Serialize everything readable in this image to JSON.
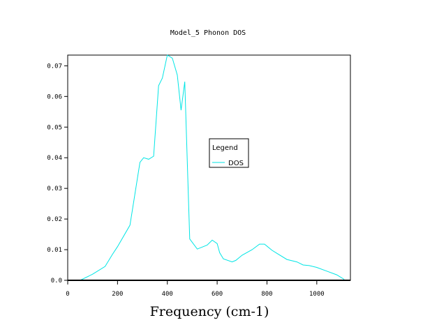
{
  "chart_data": {
    "type": "line",
    "title": "Model_5 Phonon DOS",
    "xlabel": "Frequency (cm-1)",
    "ylabel": "",
    "xlim": [
      0,
      1135
    ],
    "ylim": [
      0,
      0.0735
    ],
    "x_ticks": [
      0,
      200,
      400,
      600,
      800,
      1000
    ],
    "x_tick_labels": [
      "0",
      "200",
      "400",
      "600",
      "800",
      "1000"
    ],
    "y_ticks": [
      0,
      0.01,
      0.02,
      0.03,
      0.04,
      0.05,
      0.06,
      0.07
    ],
    "y_tick_labels": [
      "0.0",
      "0.01",
      "0.02",
      "0.03",
      "0.04",
      "0.05",
      "0.06",
      "0.07"
    ],
    "grid": false,
    "legend": {
      "title": "Legend",
      "placement": "center",
      "entries": [
        "DOS"
      ]
    },
    "series": [
      {
        "name": "DOS",
        "color": "#00e5e5",
        "x": [
          50,
          100,
          150,
          180,
          200,
          250,
          290,
          305,
          325,
          345,
          365,
          380,
          400,
          420,
          440,
          455,
          470,
          490,
          520,
          560,
          580,
          600,
          610,
          625,
          660,
          675,
          700,
          740,
          770,
          790,
          820,
          840,
          880,
          920,
          945,
          970,
          1000,
          1040,
          1080,
          1110
        ],
        "y": [
          0.0,
          0.002,
          0.0045,
          0.0085,
          0.011,
          0.018,
          0.0385,
          0.04,
          0.0395,
          0.0405,
          0.0635,
          0.066,
          0.0735,
          0.0725,
          0.067,
          0.0555,
          0.0648,
          0.0135,
          0.0102,
          0.0115,
          0.0131,
          0.012,
          0.009,
          0.007,
          0.006,
          0.0065,
          0.0082,
          0.01,
          0.0118,
          0.0118,
          0.0098,
          0.0088,
          0.0068,
          0.006,
          0.005,
          0.0048,
          0.0042,
          0.003,
          0.0018,
          0.0003
        ]
      }
    ]
  }
}
